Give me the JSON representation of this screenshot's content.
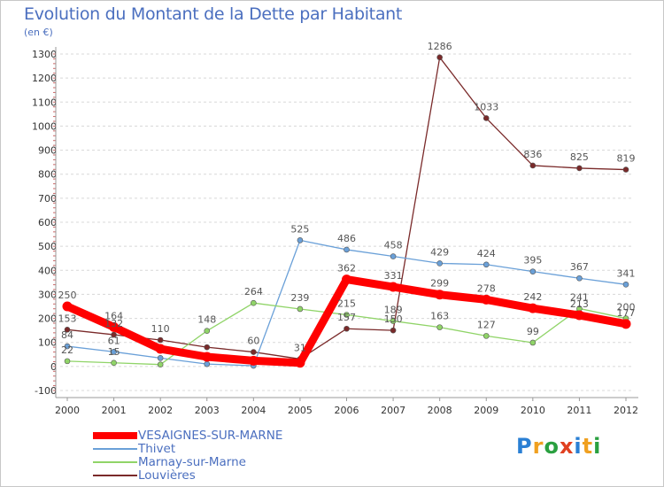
{
  "title": "Evolution du Montant de la Dette par Habitant",
  "unit": "(en €)",
  "logo": {
    "letters": [
      "P",
      "r",
      "o",
      "x",
      "i",
      "t",
      "i"
    ],
    "colors": [
      "#2a7fd4",
      "#f0a020",
      "#2aa040",
      "#e04020",
      "#2a7fd4",
      "#f0a020",
      "#2aa040"
    ]
  },
  "chart_data": {
    "type": "line",
    "x": [
      "2000",
      "2001",
      "2002",
      "2003",
      "2004",
      "2005",
      "2006",
      "2007",
      "2008",
      "2009",
      "2010",
      "2011",
      "2012"
    ],
    "ylim": [
      -100,
      1300
    ],
    "yticks": [
      -100,
      0,
      100,
      200,
      300,
      400,
      500,
      600,
      700,
      800,
      900,
      1000,
      1100,
      1200,
      1300
    ],
    "grid": "horizontal dashed",
    "legend_position": "bottom-left",
    "series": [
      {
        "name": "VESAIGNES-SUR-MARNE",
        "color": "#ff0000",
        "values": [
          250,
          164,
          73,
          40,
          24,
          15,
          362,
          331,
          299,
          278,
          242,
          213,
          177
        ],
        "labels": [
          "250",
          "164",
          "",
          "",
          "",
          "",
          "362",
          "331",
          "299",
          "278",
          "242",
          "213",
          "177"
        ]
      },
      {
        "name": "Thivet",
        "color": "#6aa0d8",
        "values": [
          84,
          61,
          35,
          10,
          3,
          525,
          486,
          458,
          429,
          424,
          395,
          367,
          341
        ],
        "labels": [
          "84",
          "61",
          "",
          "",
          "",
          "525",
          "486",
          "458",
          "429",
          "424",
          "395",
          "367",
          "341"
        ]
      },
      {
        "name": "Marnay-sur-Marne",
        "color": "#90d468",
        "values": [
          22,
          15,
          8,
          148,
          264,
          239,
          215,
          189,
          163,
          127,
          99,
          241,
          200
        ],
        "labels": [
          "22",
          "15",
          "",
          "148",
          "264",
          "239",
          "215",
          "189",
          "163",
          "127",
          "99",
          "241",
          "200"
        ]
      },
      {
        "name": "Louvières",
        "color": "#7a2a2a",
        "values": [
          153,
          132,
          110,
          80,
          60,
          31,
          157,
          150,
          1286,
          1033,
          836,
          825,
          819
        ],
        "labels": [
          "153",
          "132",
          "110",
          "",
          "60",
          "31",
          "157",
          "150",
          "1286",
          "1033",
          "836",
          "825",
          "819"
        ]
      }
    ]
  }
}
